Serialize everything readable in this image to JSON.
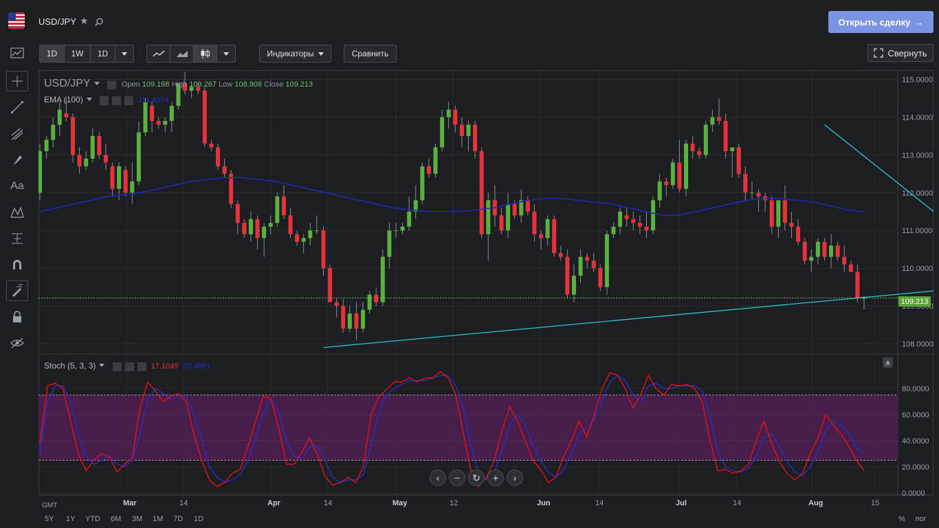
{
  "header": {
    "symbol": "USD/JPY",
    "open_deal_label": "Открыть сделку",
    "open_deal_arrow": "→"
  },
  "toolbar": {
    "intervals": [
      "1D",
      "1W",
      "1D"
    ],
    "indicators_label": "Индикаторы",
    "compare_label": "Сравнить",
    "collapse_label": "Свернуть"
  },
  "main_legend": {
    "symbol": "USD/JPY",
    "open_label": "Open",
    "open": "109.198",
    "high_label": "High",
    "high": "109.267",
    "low_label": "Low",
    "low": "108.908",
    "close_label": "Close",
    "close": "109.213",
    "ema_label": "EMA (100)",
    "ema_value": "111.4874"
  },
  "stoch_legend": {
    "label": "Stoch (5, 3, 3)",
    "k_value": "17.1049",
    "d_value": "30.4881"
  },
  "price_axis": {
    "ticks": [
      "115.0000",
      "114.0000",
      "113.0000",
      "112.0000",
      "111.0000",
      "110.0000",
      "109.0000",
      "108.0000"
    ],
    "last_price": "109.213"
  },
  "stoch_axis": {
    "ticks": [
      "80.0000",
      "60.0000",
      "40.0000",
      "20.0000",
      "0.0000"
    ]
  },
  "time_axis": {
    "tz": "GMT",
    "labels": [
      "Mar",
      "14",
      "Apr",
      "14",
      "May",
      "12",
      "Jun",
      "14",
      "Jul",
      "14",
      "Aug",
      "15"
    ]
  },
  "ranges": [
    "5Y",
    "1Y",
    "YTD",
    "6M",
    "3M",
    "1M",
    "7D",
    "1D"
  ],
  "scale_modes": {
    "percent": "%",
    "log": "лог"
  },
  "nav": [
    "‹",
    "−",
    "↻",
    "+",
    "›"
  ],
  "colors": {
    "up": "#57b33e",
    "down": "#e8323a",
    "ema": "#1f2ab5",
    "trend": "#27c6d4",
    "stoch_k": "#e8101a",
    "stoch_d": "#2530d0",
    "stoch_band": "#4b1f4d",
    "button_primary": "#7b93e3"
  },
  "chart_data": {
    "type": "candlestick",
    "price_range": [
      107.8,
      115.3
    ],
    "candles": [
      [
        112.0,
        113.3,
        111.8,
        113.1
      ],
      [
        113.1,
        113.5,
        112.9,
        113.4
      ],
      [
        113.4,
        114.0,
        113.2,
        113.8
      ],
      [
        113.8,
        114.4,
        113.5,
        114.2
      ],
      [
        114.1,
        114.5,
        113.9,
        114.0
      ],
      [
        114.0,
        114.1,
        112.8,
        113.0
      ],
      [
        113.0,
        113.2,
        112.5,
        112.7
      ],
      [
        112.7,
        113.1,
        112.6,
        112.9
      ],
      [
        112.9,
        113.7,
        112.8,
        113.5
      ],
      [
        113.5,
        113.6,
        112.9,
        113.0
      ],
      [
        113.0,
        113.3,
        112.6,
        112.8
      ],
      [
        112.7,
        112.8,
        111.9,
        112.1
      ],
      [
        112.1,
        112.8,
        111.8,
        112.7
      ],
      [
        112.6,
        112.7,
        111.9,
        112.0
      ],
      [
        112.0,
        112.8,
        111.7,
        112.3
      ],
      [
        112.3,
        113.9,
        112.2,
        113.6
      ],
      [
        113.6,
        114.5,
        113.5,
        114.4
      ],
      [
        114.3,
        114.4,
        113.6,
        113.9
      ],
      [
        113.9,
        114.0,
        113.7,
        113.8
      ],
      [
        113.8,
        114.0,
        113.6,
        113.9
      ],
      [
        113.9,
        114.4,
        113.6,
        114.3
      ],
      [
        114.3,
        114.9,
        114.2,
        114.9
      ],
      [
        114.9,
        115.2,
        114.6,
        114.7
      ],
      [
        114.7,
        114.9,
        114.5,
        114.8
      ],
      [
        114.8,
        114.9,
        114.6,
        114.7
      ],
      [
        114.7,
        114.8,
        113.2,
        113.3
      ],
      [
        113.3,
        113.4,
        113.1,
        113.2
      ],
      [
        113.2,
        113.3,
        112.6,
        112.7
      ],
      [
        112.7,
        112.9,
        112.4,
        112.5
      ],
      [
        112.5,
        112.6,
        111.6,
        111.7
      ],
      [
        111.7,
        111.8,
        110.9,
        111.2
      ],
      [
        111.2,
        111.3,
        110.8,
        110.9
      ],
      [
        110.9,
        111.5,
        110.7,
        111.3
      ],
      [
        111.3,
        111.4,
        110.5,
        110.8
      ],
      [
        110.8,
        111.2,
        110.3,
        111.1
      ],
      [
        111.1,
        111.4,
        110.9,
        111.2
      ],
      [
        111.2,
        112.0,
        111.1,
        111.9
      ],
      [
        111.9,
        112.2,
        111.3,
        111.4
      ],
      [
        111.4,
        111.6,
        110.8,
        110.9
      ],
      [
        110.9,
        111.0,
        110.6,
        110.7
      ],
      [
        110.7,
        110.9,
        110.4,
        110.8
      ],
      [
        110.8,
        111.2,
        110.6,
        111.0
      ],
      [
        111.0,
        111.4,
        110.9,
        111.0
      ],
      [
        111.0,
        111.1,
        109.8,
        110.0
      ],
      [
        110.0,
        110.1,
        109.1,
        109.1
      ],
      [
        109.1,
        109.2,
        108.7,
        109.0
      ],
      [
        109.0,
        109.2,
        108.3,
        108.4
      ],
      [
        108.4,
        109.0,
        108.3,
        108.8
      ],
      [
        108.8,
        109.1,
        108.1,
        108.4
      ],
      [
        108.4,
        109.1,
        108.3,
        108.9
      ],
      [
        108.9,
        109.4,
        108.8,
        109.3
      ],
      [
        109.3,
        109.5,
        109.0,
        109.1
      ],
      [
        109.1,
        110.5,
        109.0,
        110.3
      ],
      [
        110.3,
        111.2,
        110.0,
        111.0
      ],
      [
        111.0,
        111.2,
        110.8,
        111.0
      ],
      [
        111.0,
        111.2,
        110.9,
        111.1
      ],
      [
        111.1,
        111.9,
        111.0,
        111.5
      ],
      [
        111.5,
        112.2,
        111.3,
        111.8
      ],
      [
        111.8,
        112.8,
        111.7,
        112.7
      ],
      [
        112.7,
        112.9,
        112.4,
        112.5
      ],
      [
        112.5,
        113.3,
        112.4,
        113.2
      ],
      [
        113.2,
        114.2,
        113.1,
        114.0
      ],
      [
        114.0,
        114.4,
        113.7,
        114.2
      ],
      [
        114.2,
        114.3,
        113.6,
        113.8
      ],
      [
        113.8,
        114.0,
        113.2,
        113.5
      ],
      [
        113.5,
        113.9,
        113.1,
        113.8
      ],
      [
        113.8,
        113.9,
        112.9,
        113.1
      ],
      [
        113.1,
        113.2,
        110.8,
        110.9
      ],
      [
        110.9,
        112.0,
        110.2,
        111.8
      ],
      [
        111.8,
        112.2,
        111.1,
        111.4
      ],
      [
        111.4,
        111.6,
        110.9,
        111.0
      ],
      [
        111.0,
        112.0,
        110.8,
        111.7
      ],
      [
        111.7,
        111.8,
        111.3,
        111.4
      ],
      [
        111.4,
        112.1,
        111.2,
        111.8
      ],
      [
        111.8,
        111.9,
        111.4,
        111.5
      ],
      [
        111.5,
        111.7,
        110.7,
        110.9
      ],
      [
        110.9,
        111.0,
        110.5,
        110.8
      ],
      [
        110.8,
        111.4,
        110.6,
        111.3
      ],
      [
        111.3,
        111.4,
        110.3,
        110.4
      ],
      [
        110.4,
        110.6,
        110.2,
        110.3
      ],
      [
        110.3,
        110.5,
        109.2,
        109.3
      ],
      [
        109.3,
        110.1,
        109.1,
        109.8
      ],
      [
        109.8,
        110.5,
        109.6,
        110.3
      ],
      [
        110.3,
        110.4,
        110.0,
        110.2
      ],
      [
        110.2,
        110.4,
        109.9,
        110.0
      ],
      [
        110.0,
        110.1,
        109.4,
        109.5
      ],
      [
        109.5,
        111.0,
        109.3,
        110.9
      ],
      [
        110.9,
        111.2,
        110.8,
        111.1
      ],
      [
        111.1,
        111.6,
        110.9,
        111.5
      ],
      [
        111.4,
        111.6,
        111.1,
        111.3
      ],
      [
        111.3,
        111.5,
        111.0,
        111.2
      ],
      [
        111.2,
        111.4,
        110.9,
        111.1
      ],
      [
        111.1,
        111.5,
        110.8,
        111.0
      ],
      [
        111.0,
        111.9,
        110.9,
        111.8
      ],
      [
        111.8,
        112.5,
        111.6,
        112.3
      ],
      [
        112.3,
        112.4,
        111.9,
        112.2
      ],
      [
        112.2,
        112.9,
        112.1,
        112.8
      ],
      [
        112.8,
        113.4,
        112.0,
        112.1
      ],
      [
        112.1,
        113.4,
        111.9,
        113.3
      ],
      [
        113.3,
        113.5,
        112.9,
        113.1
      ],
      [
        113.1,
        113.2,
        112.9,
        113.0
      ],
      [
        113.0,
        113.9,
        112.9,
        113.8
      ],
      [
        113.8,
        114.2,
        113.6,
        114.0
      ],
      [
        114.0,
        114.5,
        113.8,
        113.9
      ],
      [
        113.9,
        114.1,
        112.9,
        113.1
      ],
      [
        113.1,
        113.2,
        112.4,
        113.2
      ],
      [
        113.2,
        113.3,
        112.4,
        112.5
      ],
      [
        112.5,
        112.7,
        111.8,
        112.0
      ],
      [
        112.0,
        112.3,
        111.8,
        112.0
      ],
      [
        112.0,
        112.1,
        111.5,
        111.9
      ],
      [
        111.9,
        112.0,
        111.5,
        111.8
      ],
      [
        111.8,
        111.9,
        110.9,
        111.1
      ],
      [
        111.1,
        111.8,
        110.8,
        111.8
      ],
      [
        111.8,
        112.2,
        111.0,
        111.2
      ],
      [
        111.2,
        111.5,
        110.8,
        111.1
      ],
      [
        111.1,
        111.3,
        110.6,
        110.7
      ],
      [
        110.7,
        110.8,
        110.1,
        110.2
      ],
      [
        110.2,
        110.5,
        109.9,
        110.3
      ],
      [
        110.3,
        110.8,
        110.1,
        110.7
      ],
      [
        110.7,
        110.8,
        110.2,
        110.3
      ],
      [
        110.3,
        110.9,
        110.0,
        110.6
      ],
      [
        110.6,
        110.7,
        110.2,
        110.3
      ],
      [
        110.3,
        110.6,
        109.9,
        110.1
      ],
      [
        110.1,
        110.2,
        109.9,
        109.9
      ],
      [
        109.9,
        110.1,
        109.1,
        109.2
      ],
      [
        109.198,
        109.267,
        108.908,
        109.213
      ]
    ],
    "ema_100": [
      111.5,
      111.6,
      111.7,
      111.8,
      111.9,
      111.95,
      112.0,
      112.1,
      112.2,
      112.3,
      112.35,
      112.4,
      112.4,
      112.35,
      112.3,
      112.2,
      112.1,
      112.0,
      111.9,
      111.8,
      111.7,
      111.6,
      111.55,
      111.5,
      111.5,
      111.5,
      111.55,
      111.6,
      111.7,
      111.8,
      111.85,
      111.85,
      111.8,
      111.75,
      111.7,
      111.6,
      111.5,
      111.4,
      111.4,
      111.5,
      111.6,
      111.7,
      111.8,
      111.85,
      111.85,
      111.8,
      111.75,
      111.65,
      111.55,
      111.49
    ],
    "trendlines": [
      {
        "from": [
          43,
          107.9
        ],
        "to": [
          148,
          109.6
        ]
      },
      {
        "from": [
          119,
          113.8
        ],
        "to": [
          146,
          110.05
        ]
      }
    ],
    "stoch_k": [
      38,
      82,
      84,
      80,
      55,
      30,
      17,
      25,
      30,
      28,
      16,
      22,
      27,
      65,
      85,
      78,
      70,
      74,
      76,
      70,
      45,
      25,
      10,
      5,
      8,
      15,
      18,
      35,
      55,
      74,
      72,
      50,
      22,
      22,
      31,
      42,
      30,
      13,
      6,
      8,
      12,
      8,
      20,
      60,
      74,
      79,
      85,
      85,
      88,
      85,
      88,
      88,
      93,
      88,
      75,
      45,
      16,
      5,
      12,
      25,
      48,
      66,
      55,
      40,
      25,
      18,
      8,
      12,
      28,
      40,
      55,
      43,
      60,
      80,
      92,
      90,
      80,
      65,
      75,
      90,
      80,
      75,
      83,
      82,
      83,
      80,
      70,
      40,
      17,
      18,
      15,
      17,
      22,
      40,
      55,
      38,
      24,
      15,
      10,
      15,
      30,
      42,
      60,
      52,
      45,
      36,
      25,
      17
    ],
    "stoch_d": [
      30,
      70,
      82,
      82,
      70,
      45,
      28,
      22,
      25,
      28,
      22,
      20,
      25,
      45,
      72,
      80,
      76,
      72,
      74,
      74,
      60,
      40,
      20,
      12,
      8,
      10,
      14,
      25,
      42,
      62,
      72,
      62,
      40,
      28,
      26,
      35,
      36,
      25,
      12,
      8,
      10,
      10,
      14,
      36,
      62,
      75,
      80,
      83,
      86,
      86,
      86,
      88,
      90,
      90,
      82,
      65,
      35,
      15,
      10,
      16,
      32,
      52,
      60,
      52,
      36,
      25,
      16,
      12,
      18,
      30,
      45,
      50,
      56,
      70,
      85,
      90,
      86,
      75,
      70,
      82,
      84,
      80,
      80,
      82,
      82,
      82,
      78,
      58,
      32,
      20,
      17,
      16,
      19,
      28,
      42,
      45,
      35,
      24,
      16,
      13,
      20,
      32,
      48,
      55,
      52,
      45,
      35,
      30
    ]
  }
}
